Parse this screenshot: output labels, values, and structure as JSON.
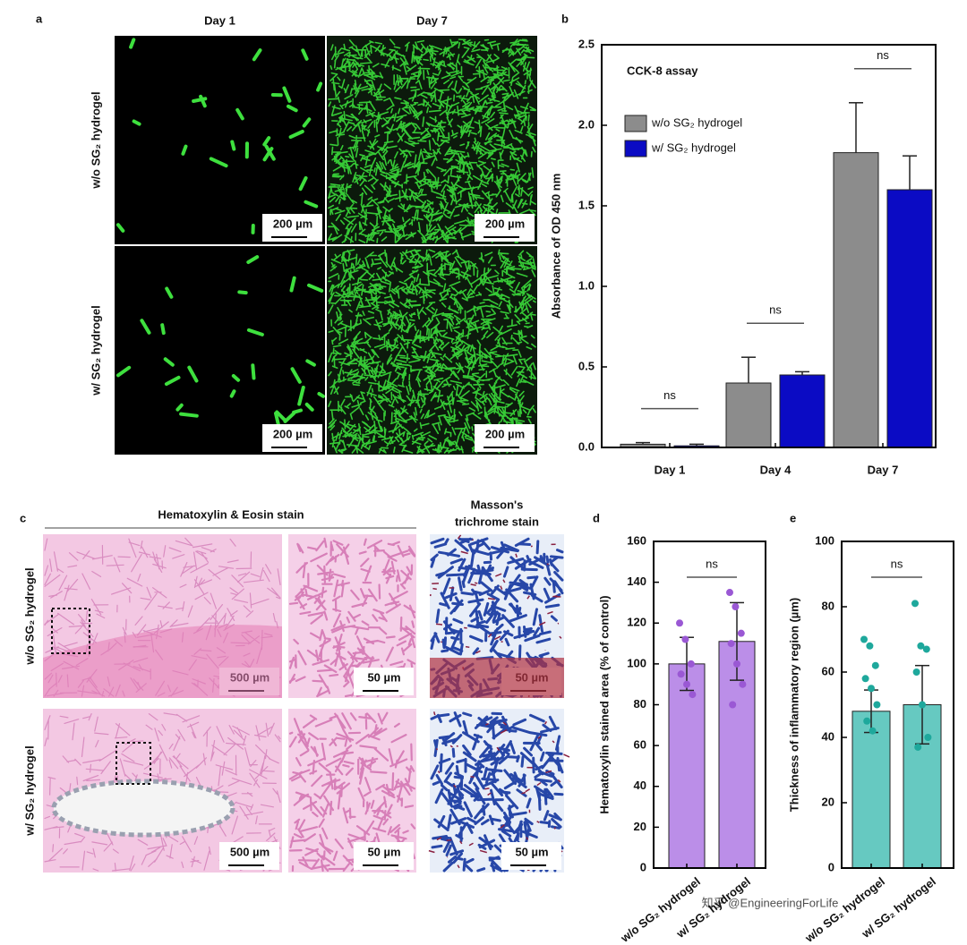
{
  "figure": {
    "panel_a": {
      "label": "a",
      "columns": [
        "Day 1",
        "Day 7"
      ],
      "rows": [
        "w/o SG₂ hydrogel",
        "w/ SG₂ hydrogel"
      ],
      "scale_bars": [
        [
          "200 µm",
          "200 µm"
        ],
        [
          "200 µm",
          "200 µm"
        ]
      ]
    },
    "panel_c": {
      "label": "c",
      "he_title": "Hematoxylin & Eosin stain",
      "masson_title": [
        "Masson's",
        "trichrome stain"
      ],
      "rows": [
        "w/o SG₂ hydrogel",
        "w/ SG₂ hydrogel"
      ],
      "scale_bars": [
        [
          "500 µm",
          "50 µm",
          "50 µm"
        ],
        [
          "500 µm",
          "50 µm",
          "50 µm"
        ]
      ]
    },
    "watermark": "知乎 @EngineeringForLife"
  },
  "chart_data": [
    {
      "type": "bar",
      "label": "b",
      "title": "CCK-8 assay",
      "ylabel": "Absorbance of OD 450 nm",
      "categories": [
        "Day 1",
        "Day 4",
        "Day 7"
      ],
      "series": [
        {
          "name": "w/o SG₂ hydrogel",
          "color": "#8c8c8c",
          "values": [
            0.02,
            0.4,
            1.83
          ],
          "errors": [
            0.01,
            0.16,
            0.31
          ]
        },
        {
          "name": "w/ SG₂ hydrogel",
          "color": "#0b0bc4",
          "values": [
            0.01,
            0.45,
            1.6
          ],
          "errors": [
            0.01,
            0.02,
            0.21
          ]
        }
      ],
      "error_bars": "upper",
      "annotations": [
        "ns",
        "ns",
        "ns"
      ],
      "legend": "upper left",
      "ylim": [
        0,
        2.5
      ],
      "yticks": [
        {
          "value": 0,
          "label": "0.0"
        },
        {
          "value": 0.5,
          "label": "0.5"
        },
        {
          "value": 1,
          "label": "1.0"
        },
        {
          "value": 1.5,
          "label": "1.5"
        },
        {
          "value": 2,
          "label": "2.0"
        },
        {
          "value": 2.5,
          "label": "2.5"
        }
      ]
    },
    {
      "type": "bar",
      "label": "d",
      "ylabel": "Hematoxylin stained area (% of control)",
      "categories": [
        "w/o SG₂ hydrogel",
        "w/ SG₂ hydrogel"
      ],
      "series": [
        {
          "color": "#bb8ee8",
          "point_color": "#9a58d4",
          "values": [
            100,
            111
          ],
          "errors": [
            13,
            19
          ],
          "points": [
            [
              120,
              112,
              100,
              95,
              90,
              85
            ],
            [
              135,
              128,
              115,
              110,
              100,
              90,
              80
            ]
          ]
        }
      ],
      "error_bars": "both",
      "annotations": [
        "ns"
      ],
      "ylim": [
        0,
        160
      ],
      "yticks": [
        0,
        20,
        40,
        60,
        80,
        100,
        120,
        140,
        160
      ]
    },
    {
      "type": "bar",
      "label": "e",
      "ylabel": "Thickness of inflammatory region (µm)",
      "categories": [
        "w/o SG₂ hydrogel",
        "w/ SG₂ hydrogel"
      ],
      "series": [
        {
          "color": "#66c9c1",
          "point_color": "#1ea89c",
          "values": [
            48,
            50
          ],
          "errors": [
            6.5,
            12
          ],
          "points": [
            [
              70,
              68,
              62,
              58,
              55,
              50,
              45,
              42
            ],
            [
              81,
              68,
              67,
              60,
              50,
              40,
              37
            ]
          ]
        }
      ],
      "error_bars": "both",
      "annotations": [
        "ns"
      ],
      "ylim": [
        0,
        100
      ],
      "yticks": [
        0,
        20,
        40,
        60,
        80,
        100
      ]
    }
  ]
}
